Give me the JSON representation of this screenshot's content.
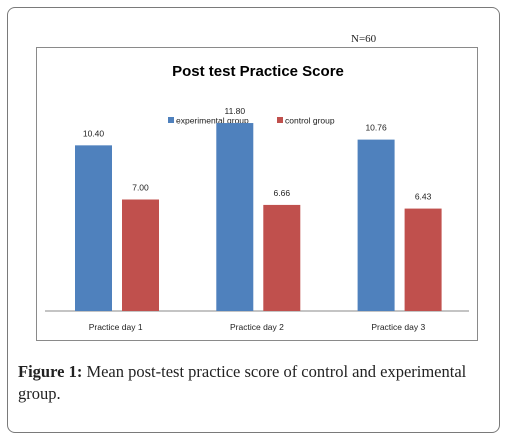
{
  "n_label": "N=60",
  "figure": {
    "label": "Figure 1:",
    "text": " Mean post-test practice score of control and experimental group."
  },
  "chart_data": {
    "type": "bar",
    "title": "Post test Practice Score",
    "categories": [
      "Practice day 1",
      "Practice day 2",
      "Practice day 3"
    ],
    "series": [
      {
        "name": "experimental group",
        "values": [
          10.4,
          11.8,
          10.76
        ],
        "labels": [
          "10.40",
          "11.80",
          "10.76"
        ],
        "color": "#4f81bd"
      },
      {
        "name": "control group",
        "values": [
          7.0,
          6.66,
          6.43
        ],
        "labels": [
          "7.00",
          "6.66",
          "6.43"
        ],
        "color": "#c0504d"
      }
    ],
    "xlabel": "",
    "ylabel": "",
    "ylim": [
      0,
      14
    ],
    "grid": false,
    "legend": "top-center"
  }
}
